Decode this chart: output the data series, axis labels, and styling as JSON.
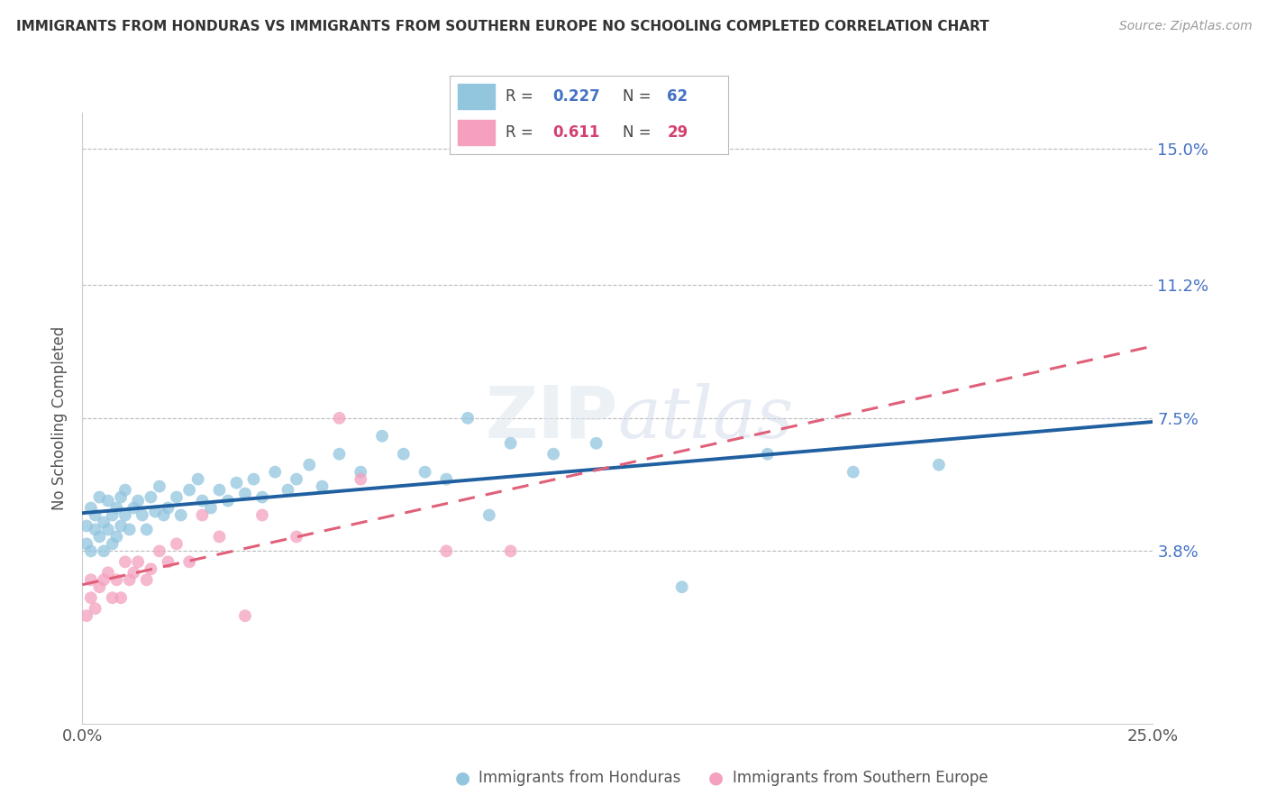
{
  "title": "IMMIGRANTS FROM HONDURAS VS IMMIGRANTS FROM SOUTHERN EUROPE NO SCHOOLING COMPLETED CORRELATION CHART",
  "source": "Source: ZipAtlas.com",
  "ylabel": "No Schooling Completed",
  "xlim": [
    0.0,
    0.25
  ],
  "ylim": [
    -0.01,
    0.16
  ],
  "xticks": [
    0.0,
    0.025,
    0.05,
    0.075,
    0.1,
    0.125,
    0.15,
    0.175,
    0.2,
    0.225,
    0.25
  ],
  "ytick_positions": [
    0.038,
    0.075,
    0.112,
    0.15
  ],
  "ytick_labels": [
    "3.8%",
    "7.5%",
    "11.2%",
    "15.0%"
  ],
  "series1_color": "#92C5DE",
  "series2_color": "#F4A0BE",
  "series1_line_color": "#2060A0",
  "series2_line_color": "#E0607A",
  "series1_r": "0.227",
  "series1_n": "62",
  "series2_r": "0.611",
  "series2_n": "29",
  "r_color": "#4472C4",
  "r2_color": "#D44070",
  "n_color": "#4472C4",
  "n2_color": "#D44070",
  "footer_label1": "Immigrants from Honduras",
  "footer_label2": "Immigrants from Southern Europe",
  "watermark": "ZIPatlas",
  "background_color": "#ffffff",
  "grid_color": "#bbbbbb",
  "series1_x": [
    0.001,
    0.001,
    0.002,
    0.002,
    0.003,
    0.003,
    0.004,
    0.004,
    0.005,
    0.005,
    0.006,
    0.006,
    0.007,
    0.007,
    0.008,
    0.008,
    0.009,
    0.009,
    0.01,
    0.01,
    0.011,
    0.012,
    0.013,
    0.014,
    0.015,
    0.016,
    0.017,
    0.018,
    0.019,
    0.02,
    0.022,
    0.023,
    0.025,
    0.027,
    0.028,
    0.03,
    0.032,
    0.034,
    0.036,
    0.038,
    0.04,
    0.042,
    0.045,
    0.048,
    0.05,
    0.053,
    0.056,
    0.06,
    0.065,
    0.07,
    0.075,
    0.08,
    0.085,
    0.09,
    0.095,
    0.1,
    0.11,
    0.12,
    0.14,
    0.16,
    0.18,
    0.2
  ],
  "series1_y": [
    0.04,
    0.045,
    0.038,
    0.05,
    0.044,
    0.048,
    0.042,
    0.053,
    0.038,
    0.046,
    0.044,
    0.052,
    0.04,
    0.048,
    0.042,
    0.05,
    0.045,
    0.053,
    0.048,
    0.055,
    0.044,
    0.05,
    0.052,
    0.048,
    0.044,
    0.053,
    0.049,
    0.056,
    0.048,
    0.05,
    0.053,
    0.048,
    0.055,
    0.058,
    0.052,
    0.05,
    0.055,
    0.052,
    0.057,
    0.054,
    0.058,
    0.053,
    0.06,
    0.055,
    0.058,
    0.062,
    0.056,
    0.065,
    0.06,
    0.07,
    0.065,
    0.06,
    0.058,
    0.075,
    0.048,
    0.068,
    0.065,
    0.068,
    0.028,
    0.065,
    0.06,
    0.062
  ],
  "series2_x": [
    0.001,
    0.002,
    0.002,
    0.003,
    0.004,
    0.005,
    0.006,
    0.007,
    0.008,
    0.009,
    0.01,
    0.011,
    0.012,
    0.013,
    0.015,
    0.016,
    0.018,
    0.02,
    0.022,
    0.025,
    0.028,
    0.032,
    0.038,
    0.042,
    0.05,
    0.06,
    0.065,
    0.085,
    0.1
  ],
  "series2_y": [
    0.02,
    0.025,
    0.03,
    0.022,
    0.028,
    0.03,
    0.032,
    0.025,
    0.03,
    0.025,
    0.035,
    0.03,
    0.032,
    0.035,
    0.03,
    0.033,
    0.038,
    0.035,
    0.04,
    0.035,
    0.048,
    0.042,
    0.02,
    0.048,
    0.042,
    0.075,
    0.058,
    0.038,
    0.038
  ]
}
